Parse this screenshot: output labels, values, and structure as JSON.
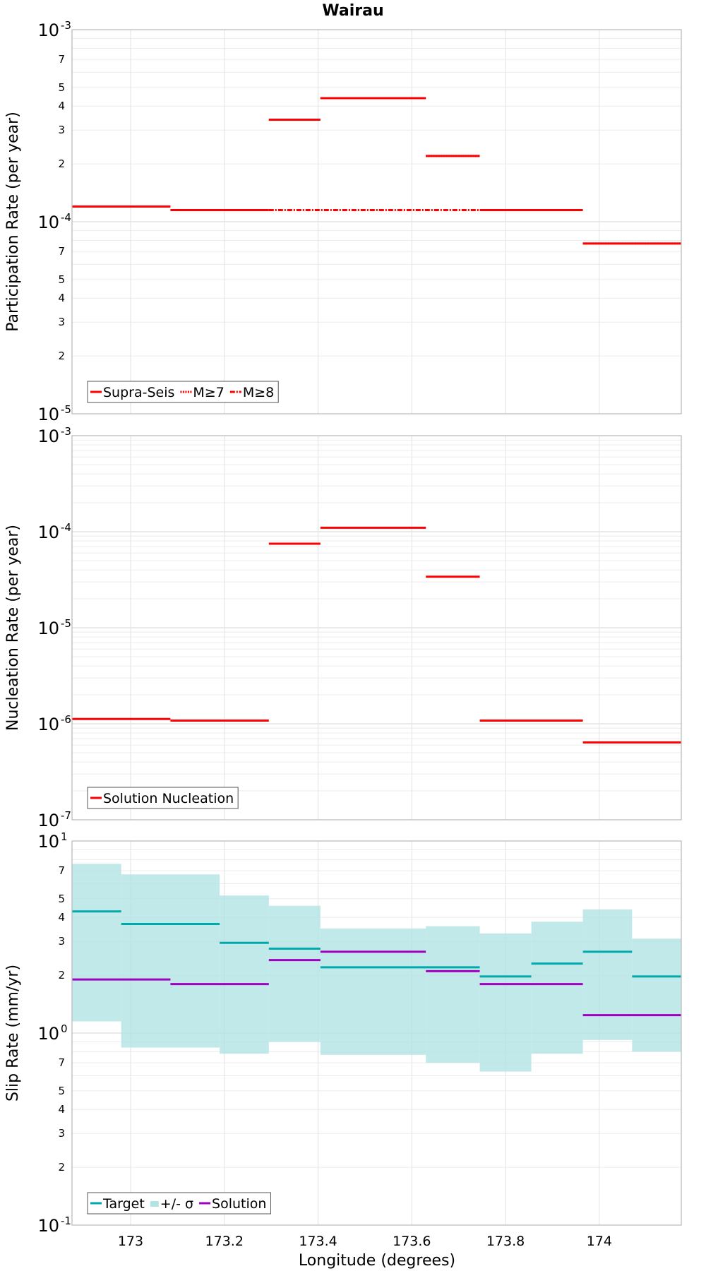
{
  "chart_data": {
    "title": "Wairau",
    "xlabel": "Longitude (degrees)",
    "xlim": [
      172.875,
      174.175
    ],
    "x_ticks": [
      {
        "value": 173.0,
        "label": "173"
      },
      {
        "value": 173.2,
        "label": "173.2"
      },
      {
        "value": 173.4,
        "label": "173.4"
      },
      {
        "value": 173.6,
        "label": "173.6"
      },
      {
        "value": 173.8,
        "label": "173.8"
      },
      {
        "value": 174.0,
        "label": "174"
      }
    ],
    "panels": [
      {
        "id": "participation",
        "type": "line",
        "ylabel": "Participation Rate (per year)",
        "y_scale": "log",
        "ylim": [
          1e-05,
          0.001
        ],
        "y_major_ticks": [
          {
            "value": 1e-05,
            "base": "10",
            "exp": "-5"
          },
          {
            "value": 0.0001,
            "base": "10",
            "exp": "-4"
          },
          {
            "value": 0.001,
            "base": "10",
            "exp": "-3"
          }
        ],
        "y_minor_labels": [
          {
            "value": 2e-05,
            "label": "2"
          },
          {
            "value": 3e-05,
            "label": "3"
          },
          {
            "value": 4e-05,
            "label": "4"
          },
          {
            "value": 5e-05,
            "label": "5"
          },
          {
            "value": 7e-05,
            "label": "7"
          },
          {
            "value": 0.0002,
            "label": "2"
          },
          {
            "value": 0.0003,
            "label": "3"
          },
          {
            "value": 0.0004,
            "label": "4"
          },
          {
            "value": 0.0005,
            "label": "5"
          },
          {
            "value": 0.0007,
            "label": "7"
          }
        ],
        "series": [
          {
            "name": "Supra-Seis",
            "color": "#ff0000",
            "dash": "solid",
            "segments": [
              [
                172.875,
                173.085,
                0.00012
              ],
              [
                173.085,
                173.295,
                0.000115
              ],
              [
                173.295,
                173.405,
                0.00034
              ],
              [
                173.405,
                173.63,
                0.00044
              ],
              [
                173.63,
                173.745,
                0.00022
              ],
              [
                173.745,
                173.965,
                0.000115
              ],
              [
                173.965,
                174.175,
                7.7e-05
              ]
            ]
          },
          {
            "name": "M≥7",
            "color": "#ff0000",
            "dash": "dot",
            "segments": [
              [
                172.875,
                173.085,
                0.00012
              ],
              [
                173.295,
                173.405,
                0.00034
              ],
              [
                173.405,
                173.63,
                0.00044
              ],
              [
                173.63,
                173.745,
                0.00022
              ],
              [
                173.965,
                174.175,
                7.7e-05
              ]
            ]
          },
          {
            "name": "M≥8",
            "color": "#ff0000",
            "dash": "dashdot",
            "segments": [
              [
                173.295,
                173.745,
                0.000115
              ]
            ]
          }
        ]
      },
      {
        "id": "nucleation",
        "type": "line",
        "ylabel": "Nucleation Rate (per year)",
        "y_scale": "log",
        "ylim": [
          1e-07,
          0.001
        ],
        "y_major_ticks": [
          {
            "value": 1e-07,
            "base": "10",
            "exp": "-7"
          },
          {
            "value": 1e-06,
            "base": "10",
            "exp": "-6"
          },
          {
            "value": 1e-05,
            "base": "10",
            "exp": "-5"
          },
          {
            "value": 0.0001,
            "base": "10",
            "exp": "-4"
          },
          {
            "value": 0.001,
            "base": "10",
            "exp": "-3"
          }
        ],
        "y_minor_labels": [],
        "series": [
          {
            "name": "Solution Nucleation",
            "color": "#ff0000",
            "dash": "solid",
            "segments": [
              [
                172.875,
                173.085,
                1.12e-06
              ],
              [
                173.085,
                173.295,
                1.08e-06
              ],
              [
                173.295,
                173.405,
                7.5e-05
              ],
              [
                173.405,
                173.63,
                0.00011
              ],
              [
                173.63,
                173.745,
                3.4e-05
              ],
              [
                173.745,
                173.965,
                1.08e-06
              ],
              [
                173.965,
                174.175,
                6.4e-07
              ]
            ]
          }
        ]
      },
      {
        "id": "slip",
        "type": "line",
        "ylabel": "Slip Rate (mm/yr)",
        "y_scale": "log",
        "ylim": [
          0.1,
          10
        ],
        "y_major_ticks": [
          {
            "value": 0.1,
            "base": "10",
            "exp": "-1"
          },
          {
            "value": 1,
            "base": "10",
            "exp": "0"
          },
          {
            "value": 10,
            "base": "10",
            "exp": "1"
          }
        ],
        "y_minor_labels": [
          {
            "value": 0.2,
            "label": "2"
          },
          {
            "value": 0.3,
            "label": "3"
          },
          {
            "value": 0.4,
            "label": "4"
          },
          {
            "value": 0.5,
            "label": "5"
          },
          {
            "value": 0.7,
            "label": "7"
          },
          {
            "value": 2,
            "label": "2"
          },
          {
            "value": 3,
            "label": "3"
          },
          {
            "value": 4,
            "label": "4"
          },
          {
            "value": 5,
            "label": "5"
          },
          {
            "value": 7,
            "label": "7"
          }
        ],
        "band": {
          "name": "+/- σ",
          "color": "#b2e4e4",
          "segments": [
            [
              172.875,
              172.98,
              1.15,
              7.6
            ],
            [
              172.98,
              173.19,
              0.84,
              6.7
            ],
            [
              173.19,
              173.295,
              0.78,
              5.2
            ],
            [
              173.295,
              173.405,
              0.9,
              4.6
            ],
            [
              173.405,
              173.63,
              0.77,
              3.5
            ],
            [
              173.63,
              173.745,
              0.7,
              3.6
            ],
            [
              173.745,
              173.855,
              0.63,
              3.3
            ],
            [
              173.855,
              173.965,
              0.78,
              3.8
            ],
            [
              173.965,
              174.07,
              0.92,
              4.4
            ],
            [
              174.07,
              174.175,
              0.8,
              3.1
            ]
          ]
        },
        "series": [
          {
            "name": "Target",
            "color": "#00aaaa",
            "dash": "solid",
            "segments": [
              [
                172.875,
                172.98,
                4.3
              ],
              [
                172.98,
                173.19,
                3.7
              ],
              [
                173.19,
                173.295,
                2.95
              ],
              [
                173.295,
                173.405,
                2.75
              ],
              [
                173.405,
                173.745,
                2.2
              ],
              [
                173.745,
                173.855,
                1.97
              ],
              [
                173.855,
                173.965,
                2.3
              ],
              [
                173.965,
                174.07,
                2.65
              ],
              [
                174.07,
                174.175,
                1.97
              ]
            ]
          },
          {
            "name": "Solution",
            "color": "#a000c0",
            "dash": "solid",
            "segments": [
              [
                172.875,
                173.085,
                1.9
              ],
              [
                173.085,
                173.295,
                1.8
              ],
              [
                173.295,
                173.405,
                2.4
              ],
              [
                173.405,
                173.63,
                2.65
              ],
              [
                173.63,
                173.745,
                2.1
              ],
              [
                173.745,
                173.965,
                1.8
              ],
              [
                173.965,
                174.175,
                1.24
              ]
            ]
          }
        ],
        "legend_order": [
          "Target",
          "+/- σ",
          "Solution"
        ]
      }
    ]
  }
}
